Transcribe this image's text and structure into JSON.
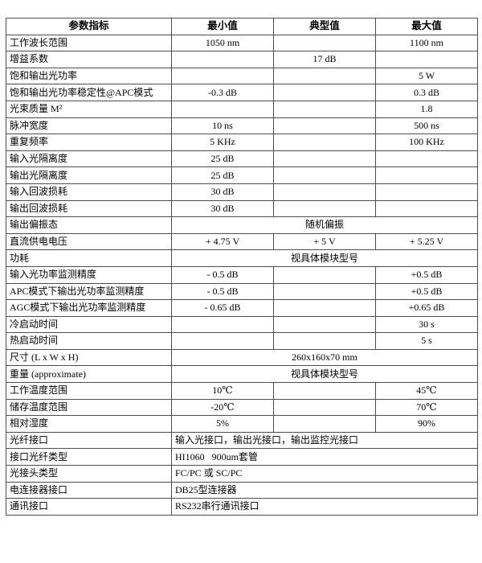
{
  "colors": {
    "background": "#ffffff",
    "border": "#4d4d4d",
    "text": "#000000"
  },
  "table": {
    "headers": [
      "参数指标",
      "最小值",
      "典型值",
      "最大值"
    ],
    "rows": [
      {
        "label": "工作波长范围",
        "min": "1050 nm",
        "typ": "",
        "max": "1100 nm"
      },
      {
        "label": "增益系数",
        "min": "",
        "typ": "17 dB",
        "max": ""
      },
      {
        "label": "饱和输出光功率",
        "min": "",
        "typ": "",
        "max": "5 W"
      },
      {
        "label": "饱和输出光功率稳定性@APC模式",
        "min": "-0.3 dB",
        "typ": "",
        "max": "0.3 dB"
      },
      {
        "label": "光束质量 M²",
        "min": "",
        "typ": "",
        "max": "1.8"
      },
      {
        "label": "脉冲宽度",
        "min": "10 ns",
        "typ": "",
        "max": "500 ns"
      },
      {
        "label": "重复频率",
        "min": "5 KHz",
        "typ": "",
        "max": "100 KHz"
      },
      {
        "label": "输入光隔离度",
        "min": "25 dB",
        "typ": "",
        "max": ""
      },
      {
        "label": "输出光隔离度",
        "min": "25 dB",
        "typ": "",
        "max": ""
      },
      {
        "label": "输入回波损耗",
        "min": "30 dB",
        "typ": "",
        "max": ""
      },
      {
        "label": "输出回波损耗",
        "min": "30 dB",
        "typ": "",
        "max": ""
      },
      {
        "label": "输出偏振态",
        "span": "随机偏振",
        "align": "center"
      },
      {
        "label": "直流供电电压",
        "min": "+ 4.75 V",
        "typ": "+ 5 V",
        "max": "+ 5.25 V"
      },
      {
        "label": "功耗",
        "span": "视具体模块型号",
        "align": "center"
      },
      {
        "label": "输入光功率监测精度",
        "min": "- 0.5 dB",
        "typ": "",
        "max": "+0.5 dB"
      },
      {
        "label": "APC模式下输出光功率监测精度",
        "min": "- 0.5 dB",
        "typ": "",
        "max": "+0.5 dB"
      },
      {
        "label": "AGC模式下输出光功率监测精度",
        "min": "- 0.65 dB",
        "typ": "",
        "max": "+0.65 dB"
      },
      {
        "label": "冷启动时间",
        "min": "",
        "typ": "",
        "max": "30 s"
      },
      {
        "label": "热启动时间",
        "min": "",
        "typ": "",
        "max": "5 s"
      },
      {
        "label": "尺寸 (L x W x H)",
        "span": "260x160x70 mm",
        "align": "center"
      },
      {
        "label": "重量 (approximate)",
        "span": "视具体模块型号",
        "align": "center"
      },
      {
        "label": "工作温度范围",
        "min": "10℃",
        "typ": "",
        "max": "45℃"
      },
      {
        "label": "储存温度范围",
        "min": "-20℃",
        "typ": "",
        "max": "70℃"
      },
      {
        "label": "相对湿度",
        "min": "5%",
        "typ": "",
        "max": "90%"
      },
      {
        "label": "光纤接口",
        "span": "输入光接口，输出光接口，输出监控光接口",
        "align": "left"
      },
      {
        "label": "接口光纤类型",
        "span": "HI1060   900um套管",
        "align": "left"
      },
      {
        "label": "光接头类型",
        "span": "FC/PC 或 SC/PC",
        "align": "left"
      },
      {
        "label": "电连接器接口",
        "span": "DB25型连接器",
        "align": "left"
      },
      {
        "label": "通讯接口",
        "span": "RS232串行通讯接口",
        "align": "left"
      }
    ]
  }
}
